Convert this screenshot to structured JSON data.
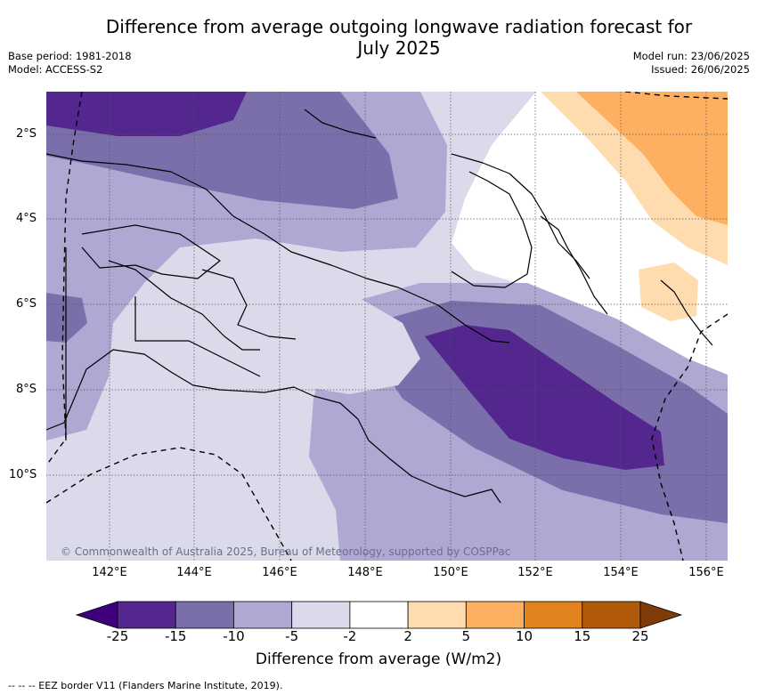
{
  "header": {
    "title_line1": "Difference from average outgoing longwave radiation forecast for",
    "title_line2": "July 2025",
    "base_period": "Base period: 1981-2018",
    "model": "Model: ACCESS-S2",
    "model_run": "Model run: 23/06/2025",
    "issued": "Issued: 26/06/2025"
  },
  "map": {
    "lat_labels": [
      "2°S",
      "4°S",
      "6°S",
      "8°S",
      "10°S"
    ],
    "lon_labels": [
      "142°E",
      "144°E",
      "146°E",
      "148°E",
      "150°E",
      "152°E",
      "154°E",
      "156°E"
    ],
    "credit": "© Commonwealth of Australia 2025, Bureau of Meteorology, supported by COSPPac"
  },
  "colorbar": {
    "ticks": [
      "-25",
      "-15",
      "-10",
      "-5",
      "-2",
      "2",
      "5",
      "10",
      "15",
      "25"
    ],
    "colors": [
      "#54278f",
      "#7b6fab",
      "#aea8d2",
      "#dadaeb",
      "#ffffff",
      "#fedcb0",
      "#fdb060",
      "#e0821d",
      "#b15a09"
    ],
    "under_color": "#3f007d",
    "over_color": "#7f3b08",
    "label": "Difference from average (W/m2)"
  },
  "footnote": "-- -- -- EEZ border V11 (Flanders Marine Institute, 2019)."
}
